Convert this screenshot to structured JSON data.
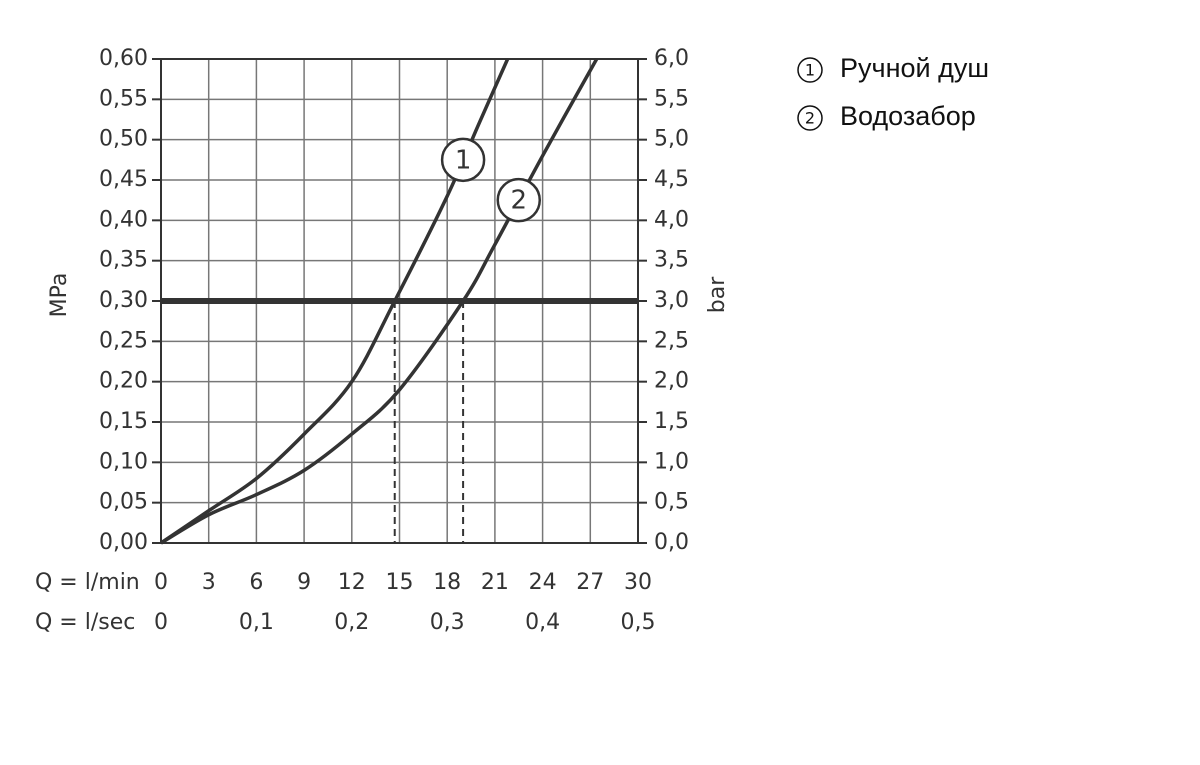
{
  "chart_data": {
    "type": "line",
    "ylabel": "MPa",
    "y2label": "bar",
    "xlabel": "Q = l/min",
    "x2label": "Q = l/sec",
    "xlim": [
      0,
      30
    ],
    "xticks": [
      0,
      3,
      6,
      9,
      12,
      15,
      18,
      21,
      24,
      27,
      30
    ],
    "x2lim": [
      0,
      0.5
    ],
    "x2ticks": [
      0,
      {
        "value": 0.1,
        "label": "0,1"
      },
      {
        "value": 0.2,
        "label": "0,2"
      },
      {
        "value": 0.3,
        "label": "0,3"
      },
      {
        "value": 0.4,
        "label": "0,4"
      },
      {
        "value": 0.5,
        "label": "0,5"
      }
    ],
    "ylim": [
      0,
      0.6
    ],
    "yticks": [
      {
        "value": 0,
        "label": "0,00"
      },
      {
        "value": 0.05,
        "label": "0,05"
      },
      {
        "value": 0.1,
        "label": "0,10"
      },
      {
        "value": 0.15,
        "label": "0,15"
      },
      {
        "value": 0.2,
        "label": "0,20"
      },
      {
        "value": 0.25,
        "label": "0,25"
      },
      {
        "value": 0.3,
        "label": "0,30"
      },
      {
        "value": 0.35,
        "label": "0,35"
      },
      {
        "value": 0.4,
        "label": "0,40"
      },
      {
        "value": 0.45,
        "label": "0,45"
      },
      {
        "value": 0.5,
        "label": "0,50"
      },
      {
        "value": 0.55,
        "label": "0,55"
      },
      {
        "value": 0.6,
        "label": "0,60"
      }
    ],
    "y2lim": [
      0,
      6
    ],
    "y2ticks": [
      {
        "value": 0,
        "label": "0,0"
      },
      {
        "value": 0.5,
        "label": "0,5"
      },
      {
        "value": 1,
        "label": "1,0"
      },
      {
        "value": 1.5,
        "label": "1,5"
      },
      {
        "value": 2,
        "label": "2,0"
      },
      {
        "value": 2.5,
        "label": "2,5"
      },
      {
        "value": 3,
        "label": "3,0"
      },
      {
        "value": 3.5,
        "label": "3,5"
      },
      {
        "value": 4,
        "label": "4,0"
      },
      {
        "value": 4.5,
        "label": "4,5"
      },
      {
        "value": 5,
        "label": "5,0"
      },
      {
        "value": 5.5,
        "label": "5,5"
      },
      {
        "value": 6,
        "label": "6,0"
      }
    ],
    "grid": true,
    "reference_y": 0.3,
    "drop_x": [
      14.7,
      19.0
    ],
    "color": "#333333",
    "series": [
      {
        "name": "Ручной душ",
        "label": "1",
        "color": "#333333",
        "x": [
          0,
          3,
          6,
          9,
          12,
          14.7,
          18,
          20,
          21.8
        ],
        "values": [
          0,
          0.04,
          0.08,
          0.135,
          0.2,
          0.3,
          0.43,
          0.52,
          0.6
        ]
      },
      {
        "name": "Водозабор",
        "label": "2",
        "color": "#333333",
        "x": [
          0,
          3,
          6,
          9,
          12,
          15,
          19,
          21,
          24,
          27.4
        ],
        "values": [
          0,
          0.035,
          0.06,
          0.09,
          0.135,
          0.19,
          0.3,
          0.37,
          0.48,
          0.6
        ]
      }
    ]
  }
}
